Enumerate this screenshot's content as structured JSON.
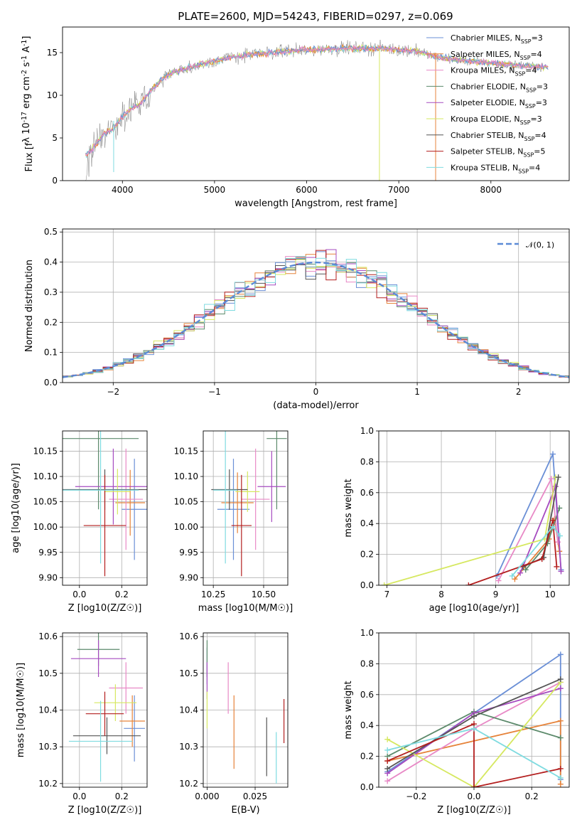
{
  "figure": {
    "title": "PLATE=2600, MJD=54243, FIBERID=0297, z=0.069"
  },
  "colors": {
    "models": [
      "#6a8fd6",
      "#e6833a",
      "#e889c6",
      "#5c8a6b",
      "#a64bc0",
      "#d6e860",
      "#555555",
      "#b31e1e",
      "#7fdbe0"
    ],
    "data_spectrum": "#808080",
    "normal_curve": "#5b8ad6"
  },
  "chart_data": [
    {
      "id": "spectrum",
      "type": "line",
      "xlabel": "wavelength [Angstrom, rest frame]",
      "ylabel": "Flux [f_λ 10^-17 erg cm^-2 s^-1 A^-1]",
      "xlim": [
        3350,
        8850
      ],
      "ylim": [
        0,
        18
      ],
      "xticks": [
        4000,
        5000,
        6000,
        7000,
        8000
      ],
      "yticks": [
        0,
        5,
        10,
        15
      ],
      "legend_position": "right",
      "legend": [
        "Chabrier MILES, N_SSP=3",
        "Salpeter MILES, N_SSP=4",
        "Kroupa MILES, N_SSP=4",
        "Chabrier ELODIE, N_SSP=3",
        "Salpeter ELODIE, N_SSP=3",
        "Kroupa ELODIE, N_SSP=3",
        "Chabrier STELIB, N_SSP=4",
        "Salpeter STELIB, N_SSP=5",
        "Kroupa STELIB, N_SSP=4"
      ],
      "continuum": {
        "x": [
          3600,
          3700,
          3800,
          3900,
          4000,
          4100,
          4200,
          4300,
          4400,
          4500,
          4600,
          4800,
          5000,
          5200,
          5400,
          5600,
          5800,
          6000,
          6200,
          6400,
          6600,
          6800,
          7000,
          7200,
          7400,
          7600,
          7800,
          8000,
          8200,
          8400,
          8600
        ],
        "y": [
          3.0,
          4.0,
          5.5,
          6.0,
          7.5,
          8.5,
          9.0,
          10.5,
          11.5,
          12.5,
          12.8,
          13.5,
          14.0,
          14.5,
          14.8,
          15.0,
          15.2,
          15.3,
          15.4,
          15.5,
          15.5,
          15.5,
          15.3,
          15.2,
          14.5,
          14.2,
          14.0,
          13.8,
          13.6,
          13.4,
          13.3
        ]
      }
    },
    {
      "id": "residuals",
      "type": "bar",
      "xlabel": "(data-model)/error",
      "ylabel": "Normed distribution",
      "xlim": [
        -2.5,
        2.5
      ],
      "ylim": [
        0,
        0.51
      ],
      "xticks": [
        -2,
        -1,
        0,
        1,
        2
      ],
      "yticks": [
        0.0,
        0.1,
        0.2,
        0.3,
        0.4,
        0.5
      ],
      "grid": true,
      "legend_position": "top-right",
      "normal_label": "𝒩(0, 1)",
      "normal": {
        "mean": 0,
        "sigma": 1
      }
    },
    {
      "id": "age-vs-z",
      "type": "scatter",
      "xlabel": "Z [log10(Z/Z☉)]",
      "ylabel": "age [log10(age/yr)]",
      "xlim": [
        -0.08,
        0.32
      ],
      "ylim": [
        9.885,
        10.19
      ],
      "xticks": [
        0.0,
        0.2
      ],
      "yticks": [
        9.9,
        9.95,
        10.0,
        10.05,
        10.1,
        10.15
      ],
      "points": [
        {
          "x": 0.26,
          "y": 10.035,
          "xerr": 0.06,
          "yerr": 0.1
        },
        {
          "x": 0.24,
          "y": 10.048,
          "xerr": 0.07,
          "yerr": 0.065
        },
        {
          "x": 0.22,
          "y": 10.055,
          "xerr": 0.08,
          "yerr": 0.1
        },
        {
          "x": 0.09,
          "y": 10.175,
          "xerr": 0.19,
          "yerr": 0.14
        },
        {
          "x": 0.16,
          "y": 10.08,
          "xerr": 0.18,
          "yerr": 0.075
        },
        {
          "x": 0.18,
          "y": 10.07,
          "xerr": 0.06,
          "yerr": 0.045
        },
        {
          "x": 0.12,
          "y": 10.074,
          "xerr": 0.2,
          "yerr": 0.04
        },
        {
          "x": 0.12,
          "y": 10.003,
          "xerr": 0.1,
          "yerr": 0.1
        },
        {
          "x": 0.1,
          "y": 10.073,
          "xerr": 0.18,
          "yerr": 0.145
        }
      ]
    },
    {
      "id": "age-vs-mass",
      "type": "scatter",
      "xlabel": "mass [log10(M/M☉)]",
      "ylabel": "",
      "xlim": [
        10.2,
        10.62
      ],
      "ylim": [
        9.885,
        10.19
      ],
      "xticks": [
        10.25,
        10.5
      ],
      "yticks": [
        9.9,
        9.95,
        10.0,
        10.05,
        10.1,
        10.15
      ],
      "points": [
        {
          "x": 10.35,
          "y": 10.035,
          "xerr": 0.08,
          "yerr": 0.1
        },
        {
          "x": 10.37,
          "y": 10.048,
          "xerr": 0.08,
          "yerr": 0.06
        },
        {
          "x": 10.46,
          "y": 10.055,
          "xerr": 0.07,
          "yerr": 0.1
        },
        {
          "x": 10.565,
          "y": 10.175,
          "xerr": 0.05,
          "yerr": 0.14
        },
        {
          "x": 10.54,
          "y": 10.08,
          "xerr": 0.07,
          "yerr": 0.07
        },
        {
          "x": 10.42,
          "y": 10.07,
          "xerr": 0.06,
          "yerr": 0.04
        },
        {
          "x": 10.33,
          "y": 10.074,
          "xerr": 0.09,
          "yerr": 0.04
        },
        {
          "x": 10.39,
          "y": 10.003,
          "xerr": 0.05,
          "yerr": 0.1
        },
        {
          "x": 10.31,
          "y": 10.073,
          "xerr": 0.06,
          "yerr": 0.145
        }
      ]
    },
    {
      "id": "weight-vs-age",
      "type": "line",
      "xlabel": "age [log10(age/yr)]",
      "ylabel": "mass weight",
      "xlim": [
        6.85,
        10.35
      ],
      "ylim": [
        0,
        1.0
      ],
      "xticks": [
        7,
        8,
        9,
        10
      ],
      "yticks": [
        0.0,
        0.2,
        0.4,
        0.6,
        0.8,
        1.0
      ],
      "grid": true,
      "series": [
        {
          "x": [
            9.02,
            10.05,
            10.2
          ],
          "y": [
            0.06,
            0.85,
            0.1
          ]
        },
        {
          "x": [
            9.35,
            9.98,
            10.08,
            10.17
          ],
          "y": [
            0.04,
            0.3,
            0.43,
            0.22
          ]
        },
        {
          "x": [
            9.05,
            10.02,
            10.14
          ],
          "y": [
            0.03,
            0.69,
            0.28
          ]
        },
        {
          "x": [
            9.55,
            9.95,
            10.17
          ],
          "y": [
            0.1,
            0.27,
            0.5
          ]
        },
        {
          "x": [
            9.45,
            10.1,
            10.2
          ],
          "y": [
            0.08,
            0.64,
            0.09
          ]
        },
        {
          "x": [
            6.95,
            9.9,
            10.1
          ],
          "y": [
            0.0,
            0.3,
            0.7
          ]
        },
        {
          "x": [
            9.5,
            9.88,
            10.15
          ],
          "y": [
            0.12,
            0.18,
            0.7
          ]
        },
        {
          "x": [
            8.5,
            9.85,
            10.05,
            10.12
          ],
          "y": [
            0.0,
            0.17,
            0.42,
            0.12
          ]
        },
        {
          "x": [
            9.3,
            10.05,
            10.18
          ],
          "y": [
            0.06,
            0.38,
            0.32
          ]
        }
      ]
    },
    {
      "id": "mass-vs-z",
      "type": "scatter",
      "xlabel": "Z [log10(Z/Z☉)]",
      "ylabel": "mass [log10(M/M☉)]",
      "xlim": [
        -0.08,
        0.32
      ],
      "ylim": [
        10.19,
        10.61
      ],
      "xticks": [
        0.0,
        0.2
      ],
      "yticks": [
        10.2,
        10.3,
        10.4,
        10.5,
        10.6
      ],
      "points": [
        {
          "x": 0.26,
          "y": 10.35,
          "xerr": 0.05,
          "yerr": 0.09
        },
        {
          "x": 0.25,
          "y": 10.37,
          "xerr": 0.06,
          "yerr": 0.07
        },
        {
          "x": 0.22,
          "y": 10.46,
          "xerr": 0.08,
          "yerr": 0.07
        },
        {
          "x": 0.09,
          "y": 10.565,
          "xerr": 0.1,
          "yerr": 0.045
        },
        {
          "x": 0.09,
          "y": 10.54,
          "xerr": 0.13,
          "yerr": 0.05
        },
        {
          "x": 0.17,
          "y": 10.42,
          "xerr": 0.1,
          "yerr": 0.05
        },
        {
          "x": 0.13,
          "y": 10.33,
          "xerr": 0.16,
          "yerr": 0.05
        },
        {
          "x": 0.12,
          "y": 10.39,
          "xerr": 0.09,
          "yerr": 0.06
        },
        {
          "x": 0.1,
          "y": 10.315,
          "xerr": 0.15,
          "yerr": 0.11
        }
      ]
    },
    {
      "id": "mass-vs-ebv",
      "type": "scatter",
      "xlabel": "E(B-V)",
      "ylabel": "",
      "xlim": [
        -0.002,
        0.042
      ],
      "ylim": [
        10.19,
        10.61
      ],
      "xticks": [
        0.0,
        0.025
      ],
      "yticks": [
        10.2,
        10.3,
        10.4,
        10.5,
        10.6
      ],
      "points": [
        {
          "x": 0.0,
          "y": 10.52,
          "xerr": 0,
          "yerr": 0.05
        },
        {
          "x": 0.014,
          "y": 10.34,
          "xerr": 0,
          "yerr": 0.1
        },
        {
          "x": 0.011,
          "y": 10.46,
          "xerr": 0,
          "yerr": 0.07
        },
        {
          "x": 0.0,
          "y": 10.54,
          "xerr": 0,
          "yerr": 0.05
        },
        {
          "x": 0.0,
          "y": 10.48,
          "xerr": 0,
          "yerr": 0.05
        },
        {
          "x": 0.0,
          "y": 10.4,
          "xerr": 0,
          "yerr": 0.05
        },
        {
          "x": 0.031,
          "y": 10.3,
          "xerr": 0,
          "yerr": 0.08
        },
        {
          "x": 0.04,
          "y": 10.37,
          "xerr": 0,
          "yerr": 0.06
        },
        {
          "x": 0.036,
          "y": 10.27,
          "xerr": 0,
          "yerr": 0.07
        }
      ]
    },
    {
      "id": "weight-vs-z",
      "type": "line",
      "xlabel": "Z [log10(Z/Z☉)]",
      "ylabel": "mass weight",
      "xlim": [
        -0.33,
        0.33
      ],
      "ylim": [
        0,
        1.0
      ],
      "xticks": [
        -0.2,
        0.0,
        0.2
      ],
      "yticks": [
        0.0,
        0.2,
        0.4,
        0.6,
        0.8,
        1.0
      ],
      "grid": true,
      "series": [
        {
          "x": [
            -0.3,
            0.3,
            0.3
          ],
          "y": [
            0.1,
            0.86,
            0.05
          ]
        },
        {
          "x": [
            -0.3,
            0.3,
            0.3
          ],
          "y": [
            0.17,
            0.43,
            0.02
          ]
        },
        {
          "x": [
            -0.3,
            0.0,
            0.3
          ],
          "y": [
            0.04,
            0.38,
            0.68
          ]
        },
        {
          "x": [
            -0.3,
            0.0,
            0.3
          ],
          "y": [
            0.2,
            0.49,
            0.32
          ]
        },
        {
          "x": [
            -0.3,
            0.0,
            0.3
          ],
          "y": [
            0.09,
            0.48,
            0.64
          ]
        },
        {
          "x": [
            -0.3,
            0.0,
            0.3
          ],
          "y": [
            0.31,
            0.0,
            0.68
          ]
        },
        {
          "x": [
            -0.3,
            0.0,
            0.3
          ],
          "y": [
            0.12,
            0.46,
            0.7
          ]
        },
        {
          "x": [
            -0.3,
            0.0,
            0.0,
            0.3
          ],
          "y": [
            0.17,
            0.41,
            0.0,
            0.12
          ]
        },
        {
          "x": [
            -0.3,
            0.0,
            0.3
          ],
          "y": [
            0.24,
            0.38,
            0.06
          ]
        }
      ]
    }
  ]
}
